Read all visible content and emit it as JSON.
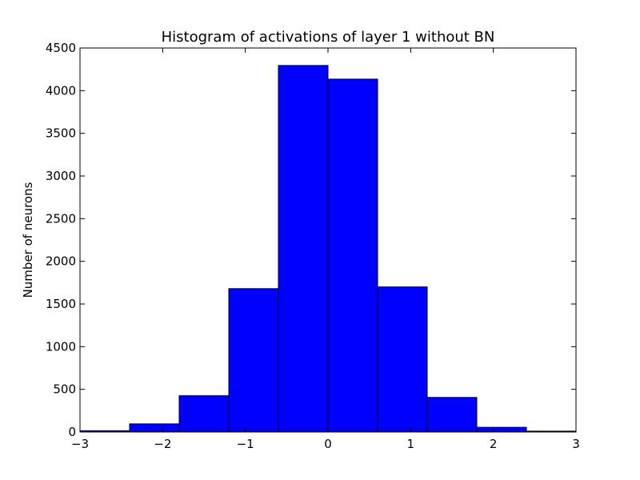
{
  "chart_data": {
    "type": "bar",
    "title": "Histogram of activations of layer 1  without BN",
    "xlabel": "",
    "ylabel": "Number of neurons",
    "xlim": [
      -3,
      3
    ],
    "ylim": [
      0,
      4500
    ],
    "bin_edges": [
      -3.0,
      -2.4,
      -1.8,
      -1.2,
      -0.6,
      0.0,
      0.6,
      1.2,
      1.8,
      2.4,
      3.0
    ],
    "values": [
      15,
      95,
      425,
      1680,
      4295,
      4135,
      1700,
      405,
      55,
      10
    ],
    "xticks": [
      -3,
      -2,
      -1,
      0,
      1,
      2,
      3
    ],
    "xtick_labels": [
      "−3",
      "−2",
      "−1",
      "0",
      "1",
      "2",
      "3"
    ],
    "yticks": [
      0,
      500,
      1000,
      1500,
      2000,
      2500,
      3000,
      3500,
      4000,
      4500
    ],
    "ytick_labels": [
      "0",
      "500",
      "1000",
      "1500",
      "2000",
      "2500",
      "3000",
      "3500",
      "4000",
      "4500"
    ],
    "grid": false,
    "bar_color": "#0000ff",
    "edge_color": "#000000"
  }
}
